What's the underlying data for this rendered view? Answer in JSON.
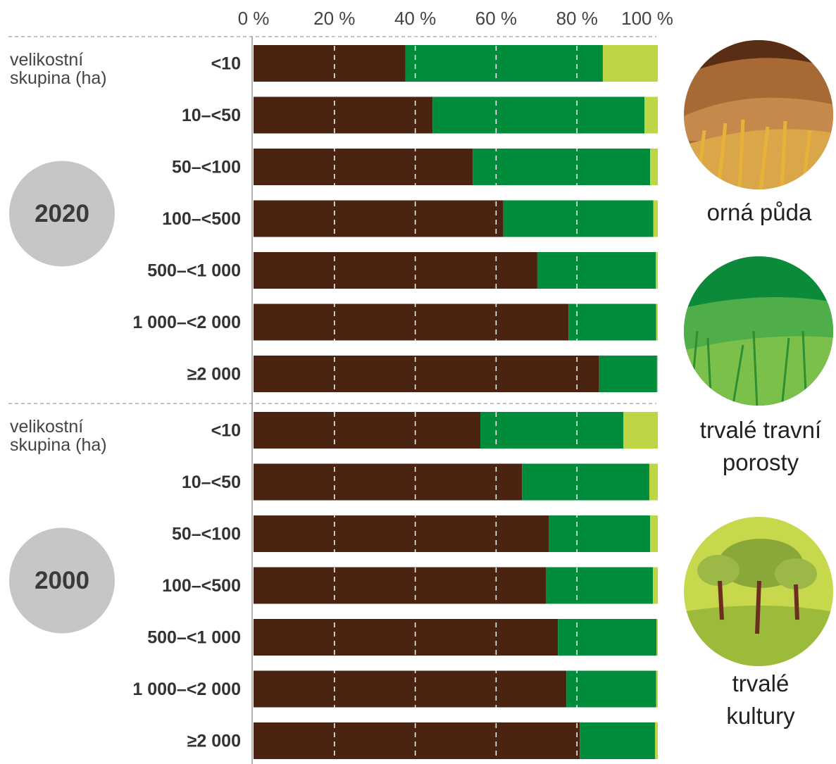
{
  "chart_data": {
    "type": "stacked-bar",
    "xlim": [
      0,
      100
    ],
    "xticks": [
      {
        "value": 0,
        "label": "0 %"
      },
      {
        "value": 20,
        "label": "20 %"
      },
      {
        "value": 40,
        "label": "40 %"
      },
      {
        "value": 60,
        "label": "60 %"
      },
      {
        "value": 80,
        "label": "80 %"
      },
      {
        "value": 100,
        "label": "100 %"
      }
    ],
    "groups": [
      {
        "label": "2020",
        "caption": "velikostní skupina (ha)",
        "categories": [
          "<10",
          "10–<50",
          "50–<100",
          "100–<500",
          "500–<1 000",
          "1 000–<2 000",
          "≥2 000"
        ]
      },
      {
        "label": "2000",
        "caption": "velikostní skupina (ha)",
        "categories": [
          "<10",
          "10–<50",
          "50–<100",
          "100–<500",
          "500–<1 000",
          "1 000–<2 000",
          "≥2 000"
        ]
      }
    ],
    "series": [
      {
        "name": "orná půda",
        "color": "#4a2411",
        "values": [
          [
            37.6,
            44.3,
            54.2,
            61.8,
            70.2,
            77.9,
            85.5
          ],
          [
            56.1,
            66.4,
            73.0,
            72.3,
            75.3,
            77.4,
            80.7
          ]
        ]
      },
      {
        "name": "trvalé travní porosty",
        "color": "#008c3a",
        "values": [
          [
            48.8,
            52.4,
            43.9,
            37.1,
            29.3,
            21.7,
            14.3
          ],
          [
            35.4,
            31.5,
            25.1,
            26.5,
            24.4,
            22.2,
            18.6
          ]
        ]
      },
      {
        "name": "trvalé kultury",
        "color": "#bdd645",
        "values": [
          [
            13.6,
            3.3,
            1.9,
            1.1,
            0.5,
            0.4,
            0.2
          ],
          [
            8.5,
            2.1,
            1.9,
            1.2,
            0.3,
            0.4,
            0.7
          ]
        ]
      }
    ]
  }
}
